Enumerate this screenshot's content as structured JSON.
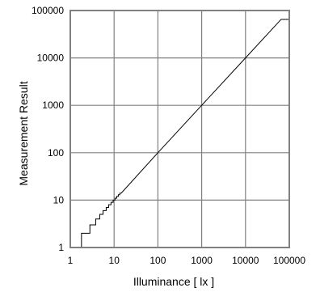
{
  "chart_data": {
    "type": "line",
    "xlabel": "Illuminance [ lx ]",
    "ylabel": "Measurement Result",
    "x_scale": "log",
    "y_scale": "log",
    "xlim": [
      1,
      100000
    ],
    "ylim": [
      1,
      100000
    ],
    "x_ticks": [
      "1",
      "10",
      "100",
      "1000",
      "10000",
      "100000"
    ],
    "y_ticks": [
      "1",
      "10",
      "100",
      "1000",
      "10000",
      "100000"
    ],
    "grid": true,
    "series": [
      {
        "color": "#000000",
        "points": [
          [
            1.8,
            1
          ],
          [
            1.8,
            2
          ],
          [
            2.8,
            2
          ],
          [
            2.8,
            3
          ],
          [
            3.8,
            3
          ],
          [
            3.8,
            4
          ],
          [
            4.7,
            4
          ],
          [
            4.7,
            5
          ],
          [
            5.6,
            5
          ],
          [
            5.6,
            6
          ],
          [
            6.6,
            6
          ],
          [
            6.6,
            7
          ],
          [
            7.5,
            7
          ],
          [
            7.5,
            8
          ],
          [
            8.5,
            8
          ],
          [
            8.5,
            9
          ],
          [
            9.5,
            9
          ],
          [
            9.5,
            10
          ],
          [
            10.5,
            10
          ],
          [
            10.5,
            11
          ],
          [
            11.5,
            11
          ],
          [
            11.5,
            12
          ],
          [
            12.5,
            12
          ],
          [
            12.5,
            13
          ],
          [
            13.5,
            13
          ],
          [
            13.5,
            14
          ],
          [
            14.5,
            14
          ],
          [
            100,
            100
          ],
          [
            1000,
            1000
          ],
          [
            10000,
            10000
          ],
          [
            65000,
            65000
          ],
          [
            100000,
            65000
          ]
        ]
      }
    ]
  }
}
